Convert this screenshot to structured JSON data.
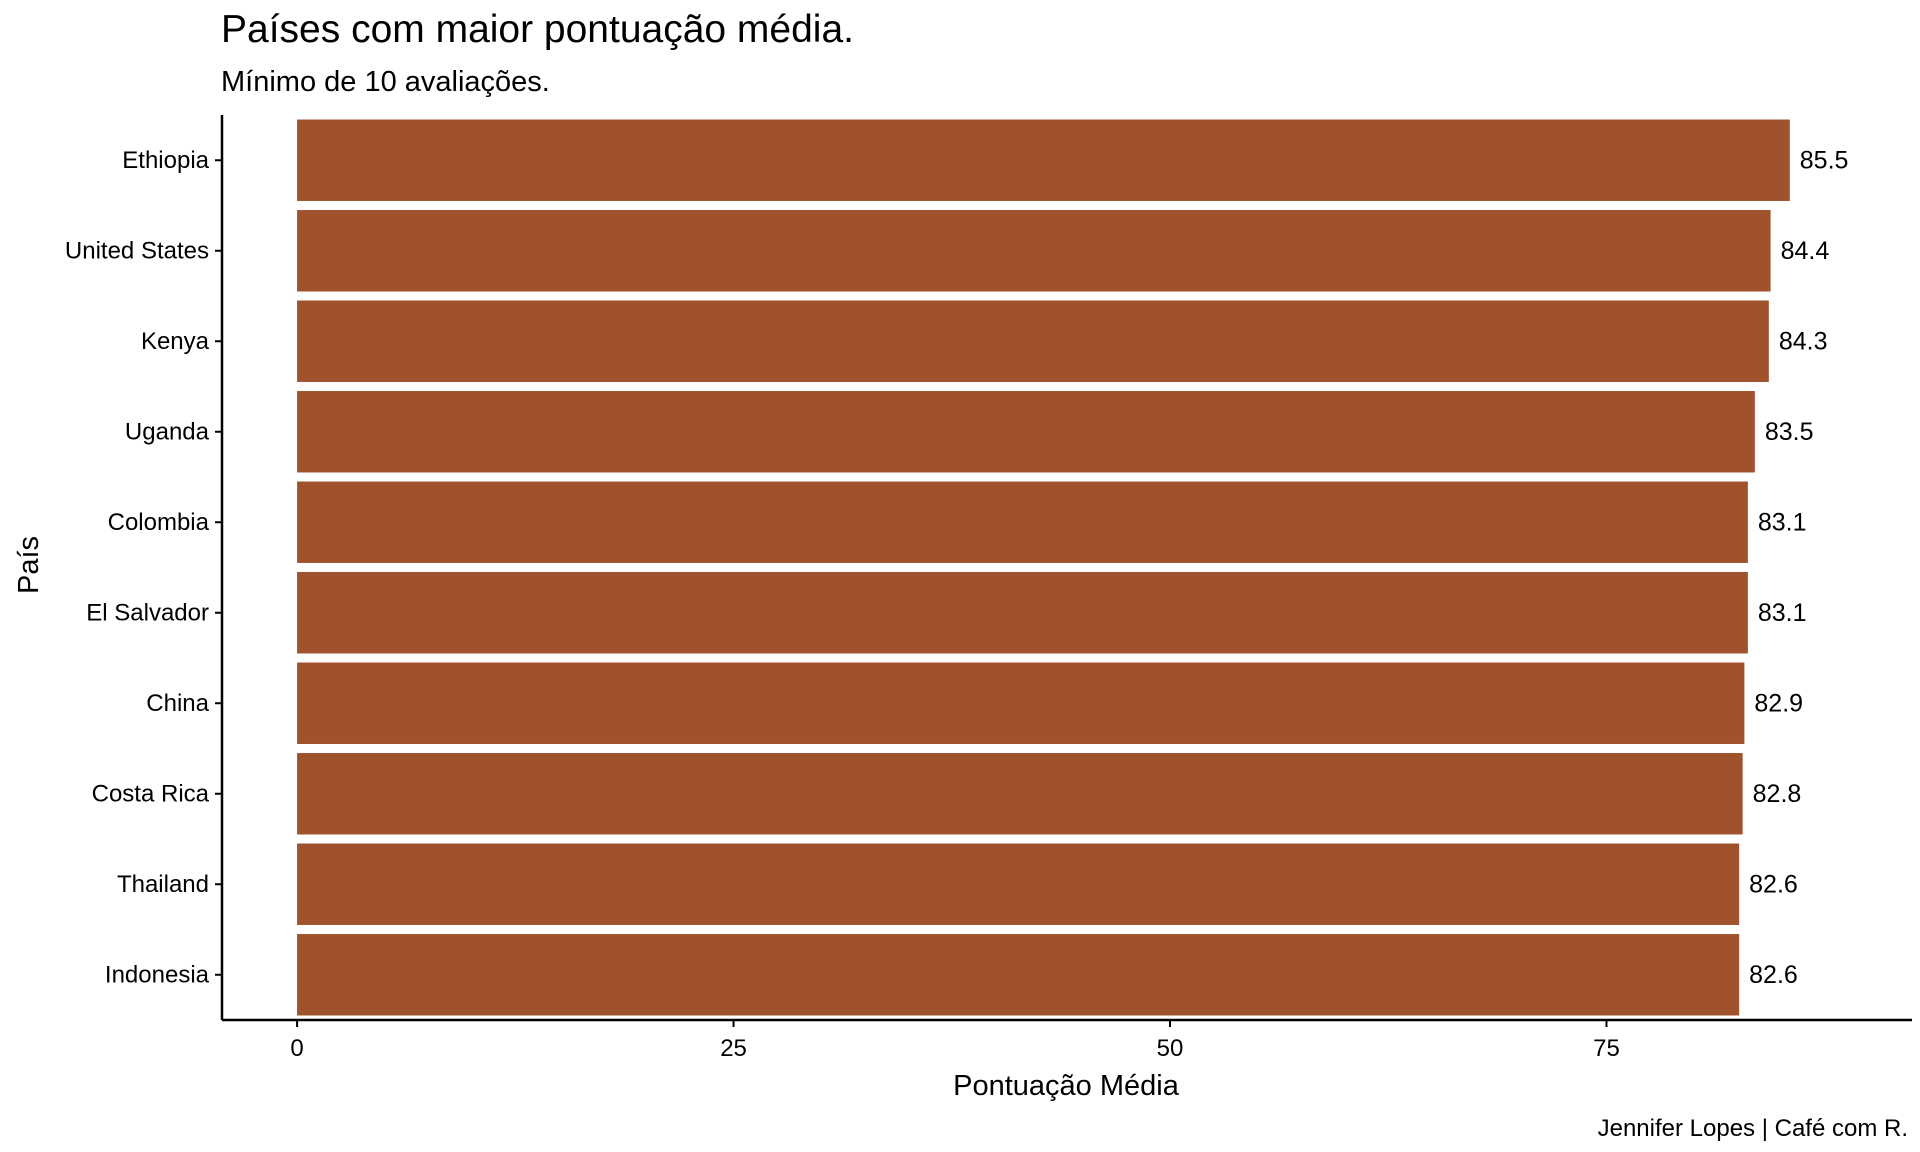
{
  "chart_data": {
    "type": "bar",
    "orientation": "horizontal",
    "title": "Países com maior pontuação média.",
    "subtitle": "Mínimo de 10 avaliações.",
    "xlabel": "Pontuação Média",
    "ylabel": "País",
    "caption": "Jennifer Lopes | Café com R.",
    "categories": [
      "Ethiopia",
      "United States",
      "Kenya",
      "Uganda",
      "Colombia",
      "El Salvador",
      "China",
      "Costa Rica",
      "Thailand",
      "Indonesia"
    ],
    "values": [
      85.5,
      84.4,
      84.3,
      83.5,
      83.1,
      83.1,
      82.9,
      82.8,
      82.6,
      82.6
    ],
    "value_labels": [
      "85.5",
      "84.4",
      "84.3",
      "83.5",
      "83.1",
      "83.1",
      "82.9",
      "82.8",
      "82.6",
      "82.6"
    ],
    "xticks": [
      0,
      25,
      50,
      75
    ],
    "xlim": [
      -4.3,
      92.5
    ],
    "bar_color": "#A0522D",
    "grid": false,
    "legend": "none"
  }
}
